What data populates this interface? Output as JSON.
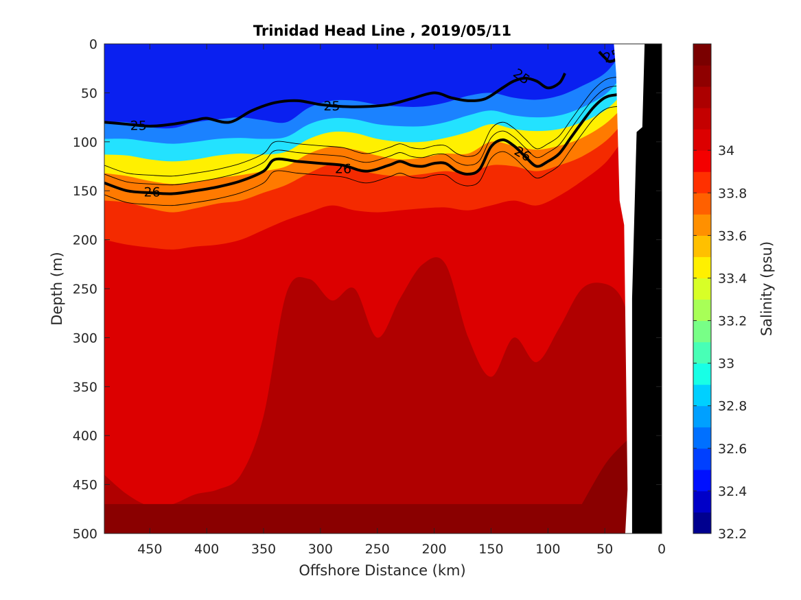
{
  "chart_data": {
    "type": "contour",
    "title": "Trinidad Head Line , 2019/05/11",
    "xlabel": "Offshore Distance (km)",
    "ylabel": "Depth (m)",
    "colorbar_label": "Salinity (psu)",
    "xlim": [
      490,
      0
    ],
    "x_reversed": true,
    "ylim": [
      500,
      0
    ],
    "y_reversed": true,
    "xticks": [
      450,
      400,
      350,
      300,
      250,
      200,
      150,
      100,
      50,
      0
    ],
    "yticks": [
      0,
      50,
      100,
      150,
      200,
      250,
      300,
      350,
      400,
      450,
      500
    ],
    "colorbar": {
      "range": [
        32.2,
        34.5
      ],
      "ticks": [
        32.2,
        32.4,
        32.6,
        32.8,
        33,
        33.2,
        33.4,
        33.6,
        33.8,
        34
      ],
      "levels": [
        32.2,
        32.3,
        32.4,
        32.5,
        32.6,
        32.7,
        32.8,
        32.9,
        33.0,
        33.1,
        33.2,
        33.3,
        33.4,
        33.5,
        33.6,
        33.7,
        33.8,
        33.9,
        34.0,
        34.1,
        34.2,
        34.3,
        34.4,
        34.5
      ],
      "colors": [
        "#00008f",
        "#0000c8",
        "#0010ff",
        "#0040ff",
        "#0070ff",
        "#00a0ff",
        "#00d0ff",
        "#18ffe6",
        "#48ffb6",
        "#78ff87",
        "#a8ff57",
        "#d8ff27",
        "#fff000",
        "#ffc000",
        "#ff9000",
        "#ff6000",
        "#ff3000",
        "#f40000",
        "#dc0000",
        "#c40000",
        "#ac0000",
        "#8f0000",
        "#7a0000"
      ]
    },
    "salinity_layers": [
      {
        "salinity": 32.45,
        "color": "#0f2cff",
        "depth": [
          null,
          null,
          null,
          null,
          null,
          null,
          null,
          null,
          null,
          null,
          null,
          null,
          null,
          null,
          null,
          null,
          null,
          null,
          null,
          null,
          null,
          null,
          null,
          null,
          null
        ]
      },
      {
        "salinity": 32.75,
        "color": "#1b82ff",
        "depth": [
          80,
          80,
          85,
          86,
          80,
          77,
          75,
          78,
          80,
          65,
          58,
          58,
          62,
          64,
          64,
          60,
          53,
          50,
          55,
          57,
          53,
          43,
          30,
          10,
          0
        ]
      },
      {
        "salinity": 33.05,
        "color": "#23e2ff",
        "depth": [
          97,
          97,
          100,
          102,
          100,
          97,
          96,
          97,
          95,
          82,
          76,
          77,
          82,
          84,
          84,
          80,
          73,
          68,
          73,
          75,
          73,
          65,
          52,
          33,
          15
        ]
      },
      {
        "salinity": 33.4,
        "color": "#fff000",
        "depth": [
          113,
          114,
          118,
          120,
          118,
          114,
          112,
          113,
          110,
          97,
          90,
          91,
          97,
          100,
          100,
          96,
          90,
          82,
          87,
          89,
          87,
          80,
          68,
          52,
          40
        ]
      },
      {
        "salinity": 33.7,
        "color": "#ff7a00",
        "depth": [
          132,
          135,
          140,
          143,
          141,
          137,
          134,
          130,
          125,
          112,
          105,
          108,
          114,
          118,
          116,
          112,
          112,
          100,
          104,
          108,
          104,
          96,
          82,
          66,
          55
        ]
      },
      {
        "salinity": 33.9,
        "color": "#f42a00",
        "depth": [
          160,
          162,
          168,
          172,
          168,
          163,
          160,
          152,
          144,
          132,
          123,
          128,
          133,
          135,
          133,
          130,
          132,
          124,
          125,
          130,
          124,
          115,
          100,
          82,
          68
        ]
      },
      {
        "salinity": 34.05,
        "color": "#dc0000",
        "depth": [
          200,
          205,
          208,
          210,
          207,
          205,
          200,
          190,
          180,
          172,
          165,
          170,
          172,
          170,
          168,
          167,
          170,
          165,
          160,
          165,
          155,
          140,
          122,
          100,
          88
        ]
      },
      {
        "salinity": 34.25,
        "color": "#b00000",
        "depth": [
          440,
          460,
          472,
          470,
          460,
          455,
          440,
          380,
          255,
          240,
          262,
          250,
          300,
          260,
          225,
          225,
          300,
          340,
          300,
          325,
          290,
          250,
          245,
          260,
          300
        ]
      },
      {
        "salinity": 34.4,
        "color": "#8a0000",
        "depth": [
          null,
          null,
          null,
          null,
          null,
          null,
          null,
          null,
          null,
          null,
          null,
          null,
          null,
          null,
          null,
          null,
          null,
          null,
          null,
          null,
          null,
          470,
          430,
          410,
          400
        ]
      }
    ],
    "layer_x": [
      490,
      470,
      450,
      430,
      410,
      390,
      370,
      350,
      330,
      310,
      290,
      270,
      250,
      230,
      210,
      190,
      170,
      150,
      130,
      110,
      90,
      70,
      50,
      35,
      25
    ],
    "density_contours": [
      {
        "label": "25",
        "bold": true,
        "x": [
          490,
          470,
          450,
          430,
          410,
          400,
          380,
          360,
          340,
          320,
          300,
          280,
          260,
          240,
          220,
          200,
          185,
          170,
          155,
          140,
          130,
          120,
          110,
          100,
          90,
          85
        ],
        "y": [
          80,
          82,
          84,
          82,
          78,
          76,
          80,
          68,
          60,
          58,
          62,
          64,
          64,
          62,
          56,
          50,
          55,
          58,
          56,
          45,
          38,
          35,
          38,
          45,
          40,
          30
        ]
      },
      {
        "label": "25",
        "bold": true,
        "x": [
          55,
          50,
          45,
          35,
          25
        ],
        "y": [
          8,
          14,
          18,
          12,
          0
        ]
      },
      {
        "label": "26",
        "bold": true,
        "x": [
          490,
          470,
          450,
          430,
          410,
          390,
          370,
          350,
          340,
          320,
          300,
          280,
          260,
          240,
          230,
          220,
          210,
          200,
          190,
          180,
          170,
          160,
          150,
          140,
          130,
          120,
          110,
          100,
          90,
          80,
          70,
          60,
          50,
          40,
          20
        ],
        "y": [
          142,
          150,
          152,
          153,
          150,
          146,
          140,
          130,
          118,
          120,
          122,
          124,
          130,
          124,
          120,
          124,
          125,
          122,
          122,
          130,
          133,
          128,
          105,
          98,
          104,
          115,
          125,
          120,
          112,
          96,
          80,
          65,
          55,
          52,
          50
        ]
      }
    ],
    "contour_labels": [
      {
        "text": "25",
        "x": 460,
        "y": 83,
        "angle": 0
      },
      {
        "text": "25",
        "x": 290,
        "y": 63,
        "angle": 0
      },
      {
        "text": "25",
        "x": 123,
        "y": 33,
        "angle": 35
      },
      {
        "text": "25",
        "x": 44,
        "y": 12,
        "angle": -18
      },
      {
        "text": "26",
        "x": 448,
        "y": 151,
        "angle": 0
      },
      {
        "text": "26",
        "x": 280,
        "y": 127,
        "angle": 0
      },
      {
        "text": "26",
        "x": 122,
        "y": 112,
        "angle": 30
      }
    ],
    "masked_region": {
      "white": [
        [
          47,
          500
        ],
        [
          32,
          500
        ],
        [
          30,
          455
        ],
        [
          33,
          185
        ],
        [
          37,
          160
        ],
        [
          40,
          30
        ],
        [
          42,
          0
        ],
        [
          0,
          0
        ],
        [
          0,
          500
        ]
      ],
      "black": [
        [
          25,
          500
        ],
        [
          0,
          500
        ],
        [
          0,
          0
        ],
        [
          15,
          0
        ],
        [
          17,
          85
        ],
        [
          22,
          90
        ],
        [
          26,
          260
        ],
        [
          26,
          500
        ]
      ]
    }
  }
}
